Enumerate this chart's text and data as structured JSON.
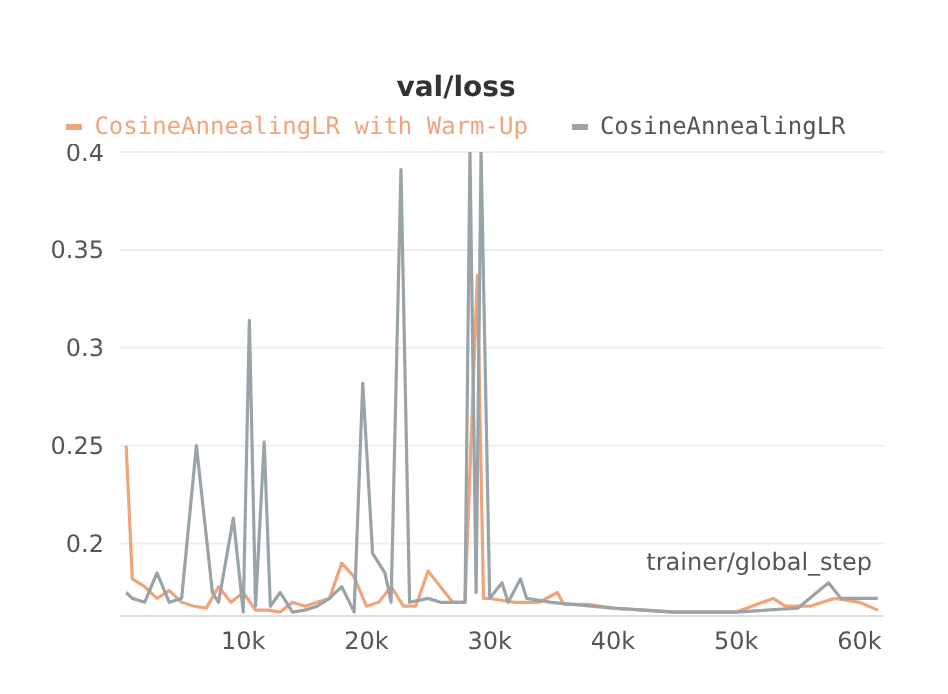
{
  "chart_data": {
    "type": "line",
    "title": "val/loss",
    "xlabel": "trainer/global_step",
    "xlim": [
      0,
      62000
    ],
    "xticks": [
      {
        "value": 10000,
        "label": "10k"
      },
      {
        "value": 20000,
        "label": "20k"
      },
      {
        "value": 30000,
        "label": "30k"
      },
      {
        "value": 40000,
        "label": "40k"
      },
      {
        "value": 50000,
        "label": "50k"
      },
      {
        "value": 60000,
        "label": "60k"
      }
    ],
    "ylim": [
      0.163,
      0.4
    ],
    "yticks": [
      0.2,
      0.25,
      0.3,
      0.35,
      0.4
    ],
    "grid": "y",
    "legend": "top",
    "marker": "none",
    "line_style": "solid",
    "series": [
      {
        "name": "CosineAnnealingLR with Warm-Up",
        "color": "#f0a47c",
        "x": [
          500,
          1000,
          2000,
          3000,
          4000,
          5000,
          6000,
          7000,
          8000,
          9000,
          10000,
          11000,
          12000,
          13000,
          14000,
          15000,
          16000,
          17000,
          18000,
          19000,
          20000,
          21000,
          22000,
          23000,
          24000,
          25000,
          26000,
          27000,
          28000,
          29000,
          29500,
          30000,
          32000,
          34000,
          35500,
          36000,
          38000,
          40000,
          45000,
          50000,
          53000,
          54000,
          56000,
          58000,
          60000,
          61500
        ],
        "values": [
          0.25,
          0.182,
          0.178,
          0.172,
          0.176,
          0.17,
          0.168,
          0.167,
          0.178,
          0.17,
          0.175,
          0.166,
          0.166,
          0.165,
          0.17,
          0.168,
          0.17,
          0.172,
          0.19,
          0.183,
          0.168,
          0.17,
          0.178,
          0.168,
          0.168,
          0.186,
          0.178,
          0.17,
          0.17,
          0.337,
          0.172,
          0.172,
          0.17,
          0.17,
          0.175,
          0.169,
          0.169,
          0.167,
          0.165,
          0.165,
          0.172,
          0.168,
          0.168,
          0.172,
          0.17,
          0.166
        ]
      },
      {
        "name": "CosineAnnealingLR",
        "color": "#9aa3a8",
        "x": [
          500,
          1000,
          2000,
          3000,
          4000,
          5000,
          6200,
          7500,
          8000,
          9200,
          10000,
          10500,
          11000,
          11700,
          12200,
          13000,
          14000,
          15000,
          16000,
          17000,
          18000,
          19000,
          19700,
          20500,
          21500,
          22000,
          22800,
          23500,
          25000,
          26000,
          27000,
          28000,
          28400,
          28900,
          29300,
          30000,
          31000,
          31500,
          32500,
          33000,
          35000,
          40000,
          45000,
          50000,
          55000,
          57500,
          58500,
          61500
        ],
        "values": [
          0.175,
          0.172,
          0.17,
          0.185,
          0.17,
          0.172,
          0.25,
          0.175,
          0.17,
          0.213,
          0.165,
          0.314,
          0.168,
          0.252,
          0.168,
          0.175,
          0.165,
          0.166,
          0.168,
          0.172,
          0.178,
          0.165,
          0.282,
          0.195,
          0.185,
          0.17,
          0.391,
          0.17,
          0.172,
          0.17,
          0.17,
          0.17,
          0.4,
          0.175,
          0.4,
          0.172,
          0.18,
          0.17,
          0.182,
          0.172,
          0.17,
          0.167,
          0.165,
          0.165,
          0.167,
          0.18,
          0.172,
          0.172
        ]
      }
    ]
  }
}
